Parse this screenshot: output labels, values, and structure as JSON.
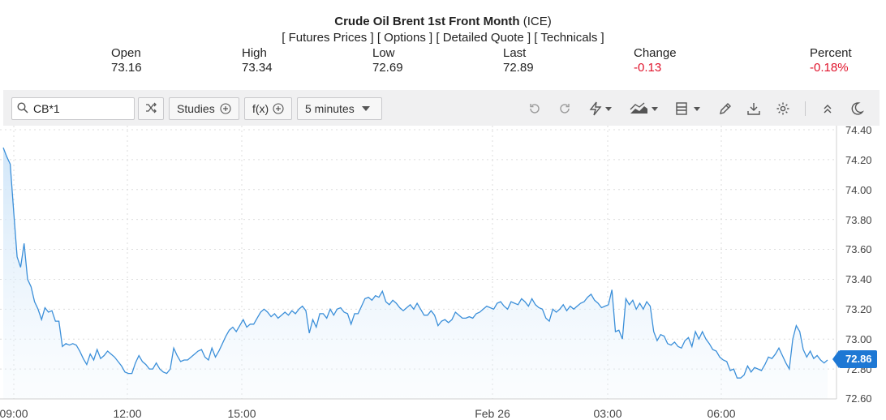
{
  "header": {
    "title": "Crude Oil Brent 1st Front Month",
    "exchange": "(ICE)",
    "links": [
      "[ Futures Prices ]",
      "[ Options ]",
      "[ Detailed Quote ]",
      "[ Technicals ]"
    ]
  },
  "stats": {
    "open": {
      "label": "Open",
      "value": "73.16"
    },
    "high": {
      "label": "High",
      "value": "73.34"
    },
    "low": {
      "label": "Low",
      "value": "72.69"
    },
    "last": {
      "label": "Last",
      "value": "72.89"
    },
    "change": {
      "label": "Change",
      "value": "-0.13"
    },
    "percent": {
      "label": "Percent",
      "value": "-0.18%"
    }
  },
  "toolbar": {
    "symbol": "CB*1",
    "studies_label": "Studies",
    "fx_label": "f(x)",
    "interval_label": "5 minutes",
    "icons": [
      "search-icon",
      "compare-icon",
      "add-icon",
      "undo-icon",
      "redo-icon",
      "lightning-icon",
      "chart-style-icon",
      "layout-icon",
      "pencil-icon",
      "download-icon",
      "gear-icon",
      "collapse-icon",
      "dark-mode-icon"
    ]
  },
  "colors": {
    "line": "#3b8fd9",
    "fill_top": "#cfe5f8",
    "negative": "#e0132b",
    "badge": "#1e78d4",
    "toolbar_bg": "#f0f0f1"
  },
  "chart_data": {
    "type": "area",
    "title": "",
    "xlabel": "",
    "ylabel": "",
    "ylim": [
      72.6,
      74.4
    ],
    "yticks": [
      "74.40",
      "74.20",
      "74.00",
      "73.80",
      "73.60",
      "73.40",
      "73.20",
      "73.00",
      "72.80",
      "72.60"
    ],
    "xticks": [
      "09:00",
      "12:00",
      "15:00",
      "Feb 26",
      "03:00",
      "06:00"
    ],
    "grid": true,
    "last_value": "72.86",
    "series": [
      {
        "values": [
          74.28,
          74.22,
          74.17,
          73.85,
          73.55,
          73.48,
          73.64,
          73.4,
          73.35,
          73.25,
          73.2,
          73.13,
          73.21,
          73.18,
          73.19,
          73.12,
          73.12,
          72.95,
          72.97,
          72.96,
          72.97,
          72.96,
          72.92,
          72.87,
          72.83,
          72.9,
          72.86,
          72.93,
          72.87,
          72.89,
          72.92,
          72.9,
          72.88,
          72.85,
          72.82,
          72.78,
          72.77,
          72.77,
          72.84,
          72.89,
          72.85,
          72.83,
          72.8,
          72.8,
          72.84,
          72.8,
          72.78,
          72.77,
          72.8,
          72.94,
          72.89,
          72.85,
          72.86,
          72.86,
          72.88,
          72.9,
          72.92,
          72.93,
          72.88,
          72.86,
          72.94,
          72.88,
          72.92,
          72.97,
          73.02,
          73.06,
          73.08,
          73.05,
          73.09,
          73.13,
          73.08,
          73.1,
          73.1,
          73.14,
          73.18,
          73.2,
          73.18,
          73.15,
          73.17,
          73.14,
          73.16,
          73.18,
          73.16,
          73.19,
          73.17,
          73.2,
          73.22,
          73.19,
          73.04,
          73.13,
          73.08,
          73.17,
          73.17,
          73.14,
          73.2,
          73.16,
          73.2,
          73.21,
          73.18,
          73.17,
          73.1,
          73.17,
          73.17,
          73.22,
          73.27,
          73.28,
          73.26,
          73.29,
          73.28,
          73.32,
          73.25,
          73.23,
          73.26,
          73.24,
          73.21,
          73.19,
          73.21,
          73.23,
          73.2,
          73.24,
          73.2,
          73.16,
          73.16,
          73.19,
          73.16,
          73.09,
          73.12,
          73.13,
          73.11,
          73.13,
          73.18,
          73.16,
          73.14,
          73.14,
          73.15,
          73.14,
          73.17,
          73.18,
          73.2,
          73.22,
          73.21,
          73.2,
          73.24,
          73.25,
          73.22,
          73.2,
          73.25,
          73.24,
          73.23,
          73.27,
          73.25,
          73.22,
          73.27,
          73.23,
          73.21,
          73.2,
          73.14,
          73.12,
          73.2,
          73.18,
          73.2,
          73.23,
          73.19,
          73.22,
          73.2,
          73.22,
          73.24,
          73.25,
          73.28,
          73.3,
          73.26,
          73.24,
          73.21,
          73.22,
          73.23,
          73.33,
          73.05,
          73.06,
          73.0,
          73.27,
          73.23,
          73.26,
          73.2,
          73.24,
          73.2,
          73.25,
          73.22,
          73.05,
          72.99,
          73.03,
          73.02,
          72.97,
          72.96,
          72.98,
          72.95,
          72.94,
          72.99,
          73.01,
          72.95,
          73.05,
          73.0,
          73.05,
          73.0,
          72.97,
          72.93,
          72.92,
          72.88,
          72.86,
          72.85,
          72.79,
          72.8,
          72.74,
          72.74,
          72.76,
          72.82,
          72.78,
          72.81,
          72.8,
          72.79,
          72.83,
          72.88,
          72.87,
          72.9,
          72.94,
          72.89,
          72.84,
          72.8,
          73.0,
          73.09,
          73.05,
          72.93,
          72.88,
          72.92,
          72.87,
          72.89,
          72.86,
          72.84,
          72.86
        ]
      }
    ]
  }
}
